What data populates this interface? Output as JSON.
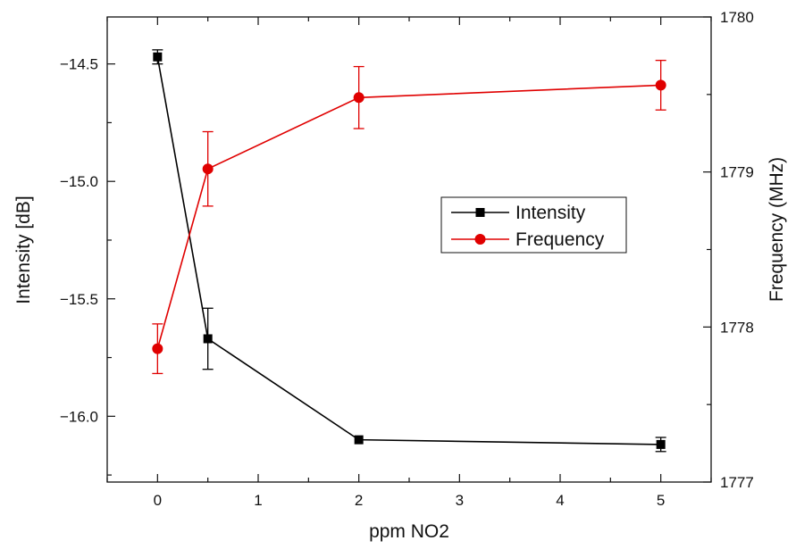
{
  "chart_data": {
    "type": "line",
    "xlabel": "ppm NO2",
    "ylabel_left": "Intensity [dB]",
    "ylabel_right": "Frequency (MHz)",
    "x_range": [
      -0.5,
      5.5
    ],
    "ylim_left": [
      -16.28,
      -14.3
    ],
    "ylim_right": [
      1777,
      1780
    ],
    "x_ticks": [
      0,
      1,
      2,
      3,
      4,
      5
    ],
    "y_ticks_left": [
      -14.5,
      -15.0,
      -15.5,
      -16.0
    ],
    "y_ticks_right": [
      1777,
      1778,
      1779,
      1780
    ],
    "grid": false,
    "legend_position": "center-right",
    "series": [
      {
        "name": "Intensity",
        "axis": "left",
        "color": "#000000",
        "marker": "square",
        "x": [
          0,
          0.5,
          2,
          5
        ],
        "y": [
          -14.47,
          -15.67,
          -16.1,
          -16.12
        ],
        "yerr": [
          0.03,
          0.13,
          0.0,
          0.03
        ]
      },
      {
        "name": "Frequency",
        "axis": "right",
        "color": "#e00000",
        "marker": "circle",
        "x": [
          0,
          0.5,
          2,
          5
        ],
        "y": [
          1777.86,
          1779.02,
          1779.48,
          1779.56
        ],
        "yerr": [
          0.16,
          0.24,
          0.2,
          0.16
        ]
      }
    ]
  },
  "labels": {
    "xlabel": "ppm NO2",
    "ylabel_left": "Intensity [dB]",
    "ylabel_right": "Frequency (MHz)",
    "x_ticks": [
      "0",
      "1",
      "2",
      "3",
      "4",
      "5"
    ],
    "y_ticks_left": [
      "−14.5",
      "−15.0",
      "−15.5",
      "−16.0"
    ],
    "y_ticks_right": [
      "1777",
      "1778",
      "1779",
      "1780"
    ],
    "legend": [
      "Intensity",
      "Frequency"
    ]
  }
}
